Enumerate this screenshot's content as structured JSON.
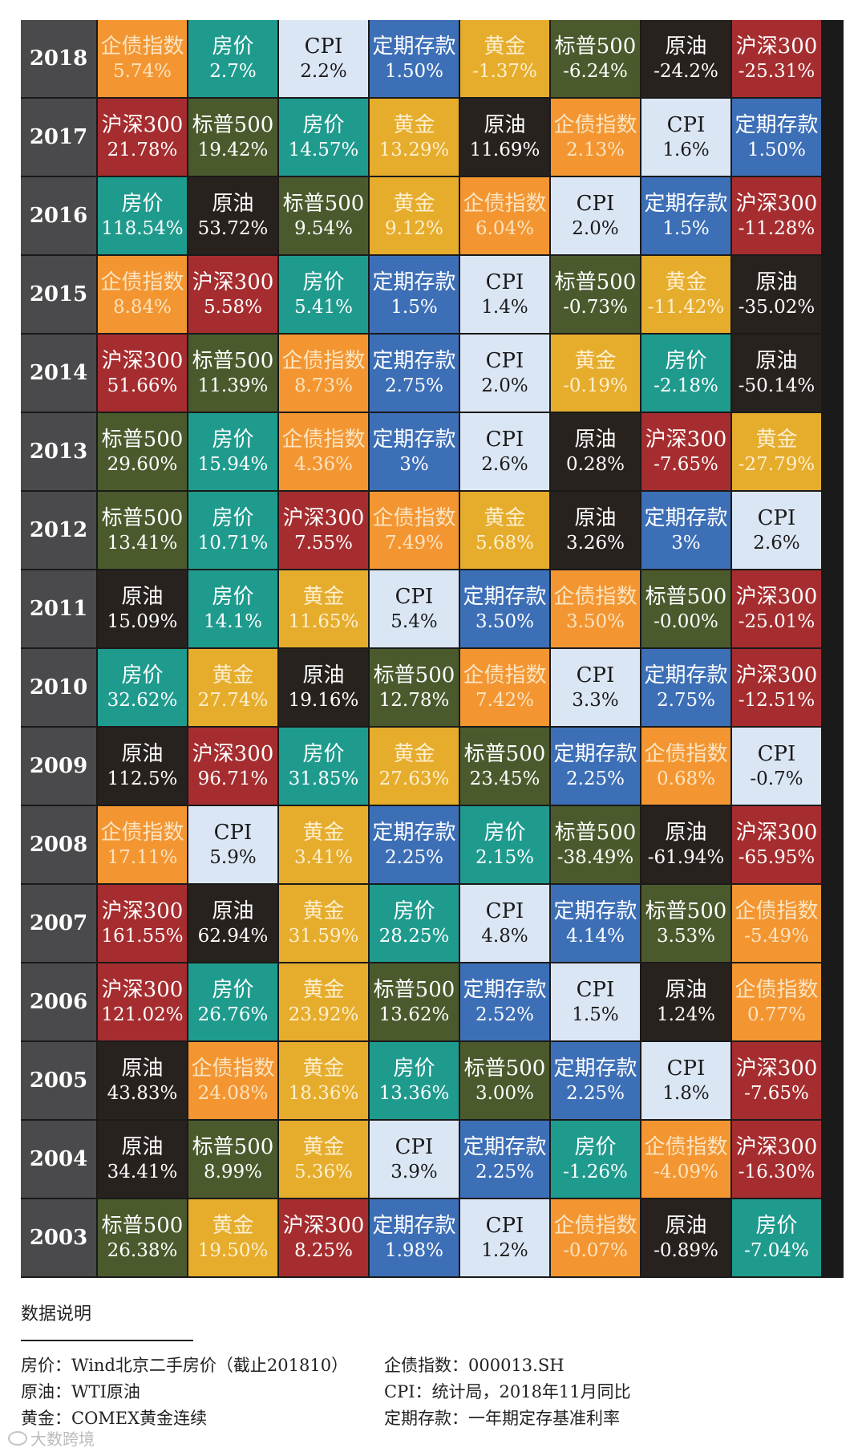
{
  "chart_data": {
    "type": "table",
    "title": "",
    "years": [
      "2018",
      "2017",
      "2016",
      "2015",
      "2014",
      "2013",
      "2012",
      "2011",
      "2010",
      "2009",
      "2008",
      "2007",
      "2006",
      "2005",
      "2004",
      "2003"
    ],
    "rows": [
      [
        [
          "企债指数",
          "5.74%"
        ],
        [
          "房价",
          "2.7%"
        ],
        [
          "CPI",
          "2.2%"
        ],
        [
          "定期存款",
          "1.50%"
        ],
        [
          "黄金",
          "-1.37%"
        ],
        [
          "标普500",
          "-6.24%"
        ],
        [
          "原油",
          "-24.2%"
        ],
        [
          "沪深300",
          "-25.31%"
        ]
      ],
      [
        [
          "沪深300",
          "21.78%"
        ],
        [
          "标普500",
          "19.42%"
        ],
        [
          "房价",
          "14.57%"
        ],
        [
          "黄金",
          "13.29%"
        ],
        [
          "原油",
          "11.69%"
        ],
        [
          "企债指数",
          "2.13%"
        ],
        [
          "CPI",
          "1.6%"
        ],
        [
          "定期存款",
          "1.50%"
        ]
      ],
      [
        [
          "房价",
          "118.54%"
        ],
        [
          "原油",
          "53.72%"
        ],
        [
          "标普500",
          "9.54%"
        ],
        [
          "黄金",
          "9.12%"
        ],
        [
          "企债指数",
          "6.04%"
        ],
        [
          "CPI",
          "2.0%"
        ],
        [
          "定期存款",
          "1.5%"
        ],
        [
          "沪深300",
          "-11.28%"
        ]
      ],
      [
        [
          "企债指数",
          "8.84%"
        ],
        [
          "沪深300",
          "5.58%"
        ],
        [
          "房价",
          "5.41%"
        ],
        [
          "定期存款",
          "1.5%"
        ],
        [
          "CPI",
          "1.4%"
        ],
        [
          "标普500",
          "-0.73%"
        ],
        [
          "黄金",
          "-11.42%"
        ],
        [
          "原油",
          "-35.02%"
        ]
      ],
      [
        [
          "沪深300",
          "51.66%"
        ],
        [
          "标普500",
          "11.39%"
        ],
        [
          "企债指数",
          "8.73%"
        ],
        [
          "定期存款",
          "2.75%"
        ],
        [
          "CPI",
          "2.0%"
        ],
        [
          "黄金",
          "-0.19%"
        ],
        [
          "房价",
          "-2.18%"
        ],
        [
          "原油",
          "-50.14%"
        ]
      ],
      [
        [
          "标普500",
          "29.60%"
        ],
        [
          "房价",
          "15.94%"
        ],
        [
          "企债指数",
          "4.36%"
        ],
        [
          "定期存款",
          "3%"
        ],
        [
          "CPI",
          "2.6%"
        ],
        [
          "原油",
          "0.28%"
        ],
        [
          "沪深300",
          "-7.65%"
        ],
        [
          "黄金",
          "-27.79%"
        ]
      ],
      [
        [
          "标普500",
          "13.41%"
        ],
        [
          "房价",
          "10.71%"
        ],
        [
          "沪深300",
          "7.55%"
        ],
        [
          "企债指数",
          "7.49%"
        ],
        [
          "黄金",
          "5.68%"
        ],
        [
          "原油",
          "3.26%"
        ],
        [
          "定期存款",
          "3%"
        ],
        [
          "CPI",
          "2.6%"
        ]
      ],
      [
        [
          "原油",
          "15.09%"
        ],
        [
          "房价",
          "14.1%"
        ],
        [
          "黄金",
          "11.65%"
        ],
        [
          "CPI",
          "5.4%"
        ],
        [
          "定期存款",
          "3.50%"
        ],
        [
          "企债指数",
          "3.50%"
        ],
        [
          "标普500",
          "-0.00%"
        ],
        [
          "沪深300",
          "-25.01%"
        ]
      ],
      [
        [
          "房价",
          "32.62%"
        ],
        [
          "黄金",
          "27.74%"
        ],
        [
          "原油",
          "19.16%"
        ],
        [
          "标普500",
          "12.78%"
        ],
        [
          "企债指数",
          "7.42%"
        ],
        [
          "CPI",
          "3.3%"
        ],
        [
          "定期存款",
          "2.75%"
        ],
        [
          "沪深300",
          "-12.51%"
        ]
      ],
      [
        [
          "原油",
          "112.5%"
        ],
        [
          "沪深300",
          "96.71%"
        ],
        [
          "房价",
          "31.85%"
        ],
        [
          "黄金",
          "27.63%"
        ],
        [
          "标普500",
          "23.45%"
        ],
        [
          "定期存款",
          "2.25%"
        ],
        [
          "企债指数",
          "0.68%"
        ],
        [
          "CPI",
          "-0.7%"
        ]
      ],
      [
        [
          "企债指数",
          "17.11%"
        ],
        [
          "CPI",
          "5.9%"
        ],
        [
          "黄金",
          "3.41%"
        ],
        [
          "定期存款",
          "2.25%"
        ],
        [
          "房价",
          "2.15%"
        ],
        [
          "标普500",
          "-38.49%"
        ],
        [
          "原油",
          "-61.94%"
        ],
        [
          "沪深300",
          "-65.95%"
        ]
      ],
      [
        [
          "沪深300",
          "161.55%"
        ],
        [
          "原油",
          "62.94%"
        ],
        [
          "黄金",
          "31.59%"
        ],
        [
          "房价",
          "28.25%"
        ],
        [
          "CPI",
          "4.8%"
        ],
        [
          "定期存款",
          "4.14%"
        ],
        [
          "标普500",
          "3.53%"
        ],
        [
          "企债指数",
          "-5.49%"
        ]
      ],
      [
        [
          "沪深300",
          "121.02%"
        ],
        [
          "房价",
          "26.76%"
        ],
        [
          "黄金",
          "23.92%"
        ],
        [
          "标普500",
          "13.62%"
        ],
        [
          "定期存款",
          "2.52%"
        ],
        [
          "CPI",
          "1.5%"
        ],
        [
          "原油",
          "1.24%"
        ],
        [
          "企债指数",
          "0.77%"
        ]
      ],
      [
        [
          "原油",
          "43.83%"
        ],
        [
          "企债指数",
          "24.08%"
        ],
        [
          "黄金",
          "18.36%"
        ],
        [
          "房价",
          "13.36%"
        ],
        [
          "标普500",
          "3.00%"
        ],
        [
          "定期存款",
          "2.25%"
        ],
        [
          "CPI",
          "1.8%"
        ],
        [
          "沪深300",
          "-7.65%"
        ]
      ],
      [
        [
          "原油",
          "34.41%"
        ],
        [
          "标普500",
          "8.99%"
        ],
        [
          "黄金",
          "5.36%"
        ],
        [
          "CPI",
          "3.9%"
        ],
        [
          "定期存款",
          "2.25%"
        ],
        [
          "房价",
          "-1.26%"
        ],
        [
          "企债指数",
          "-4.09%"
        ],
        [
          "沪深300",
          "-16.30%"
        ]
      ],
      [
        [
          "标普500",
          "26.38%"
        ],
        [
          "黄金",
          "19.50%"
        ],
        [
          "沪深300",
          "8.25%"
        ],
        [
          "定期存款",
          "1.98%"
        ],
        [
          "CPI",
          "1.2%"
        ],
        [
          "企债指数",
          "-0.07%"
        ],
        [
          "原油",
          "-0.89%"
        ],
        [
          "房价",
          "-7.04%"
        ]
      ]
    ],
    "asset_colors": {
      "企债指数": {
        "bg": "#f39632",
        "fg": "#fbe3c0"
      },
      "房价": {
        "bg": "#1f9b8e",
        "fg": "#ffffff"
      },
      "CPI": {
        "bg": "#dbe6f5",
        "fg": "#1a1a1a"
      },
      "定期存款": {
        "bg": "#3d6fb7",
        "fg": "#ffffff"
      },
      "黄金": {
        "bg": "#e6ac2c",
        "fg": "#fdf0cf"
      },
      "标普500": {
        "bg": "#4b5a2d",
        "fg": "#ffffff"
      },
      "原油": {
        "bg": "#28221f",
        "fg": "#ffffff"
      },
      "沪深300": {
        "bg": "#a62d2f",
        "fg": "#ffffff"
      }
    }
  },
  "notes": {
    "title": "数据说明",
    "left": [
      "房价：Wind北京二手房价（截止201810）",
      "原油：WTI原油",
      "黄金：COMEX黄金连续"
    ],
    "right": [
      "企债指数：000013.SH",
      "CPI：统计局，2018年11月同比",
      "定期存款：一年期定存基准利率"
    ]
  },
  "watermark": "大数跨境"
}
